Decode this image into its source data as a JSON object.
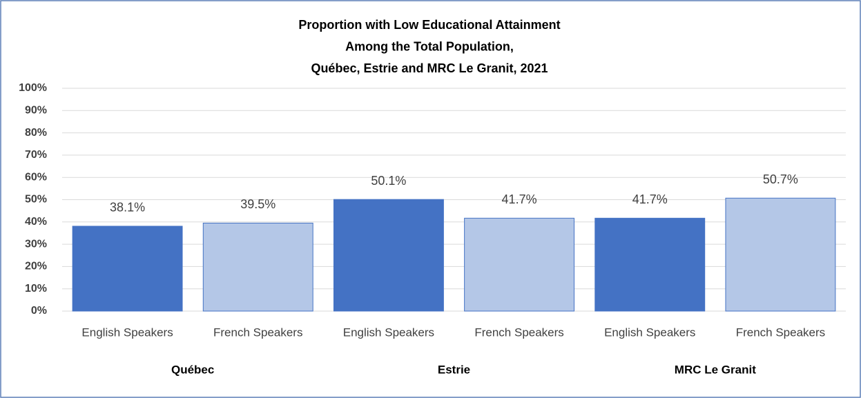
{
  "chart_data": {
    "type": "bar",
    "title": [
      "Proportion with Low Educational  Attainment",
      "Among the Total Population,",
      "Québec, Estrie and MRC Le Granit, 2021"
    ],
    "categories": [
      "Québec",
      "Estrie",
      "MRC Le Granit"
    ],
    "series": [
      {
        "name": "English Speakers",
        "color": "#4472c4",
        "values": [
          38.1,
          50.1,
          41.7
        ],
        "value_labels": [
          "38.1%",
          "50.1%",
          "41.7%"
        ]
      },
      {
        "name": "French Speakers",
        "color": "#b4c7e7",
        "values": [
          39.5,
          41.7,
          50.7
        ],
        "value_labels": [
          "39.5%",
          "41.7%",
          "50.7%"
        ]
      }
    ],
    "ylim": [
      0,
      100
    ],
    "yticks": [
      {
        "value": 0,
        "label": "0%"
      },
      {
        "value": 10,
        "label": "10%"
      },
      {
        "value": 20,
        "label": "20%"
      },
      {
        "value": 30,
        "label": "30%"
      },
      {
        "value": 40,
        "label": "40%"
      },
      {
        "value": 50,
        "label": "50%"
      },
      {
        "value": 60,
        "label": "60%"
      },
      {
        "value": 70,
        "label": "70%"
      },
      {
        "value": 80,
        "label": "80%"
      },
      {
        "value": 90,
        "label": "90%"
      },
      {
        "value": 100,
        "label": "100%"
      }
    ],
    "grid": true
  }
}
